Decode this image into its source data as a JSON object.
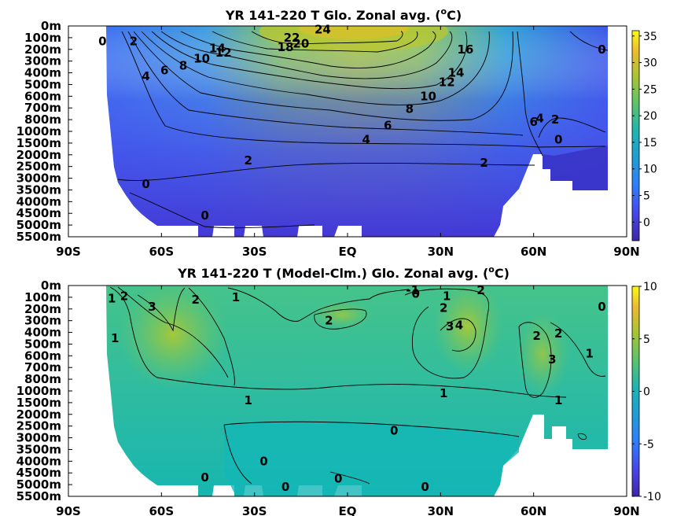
{
  "chart_data": [
    {
      "type": "heatmap",
      "title": "YR 141-220 T Glo. Zonal avg. (",
      "title_sup": "o",
      "title_end": "C)",
      "x_ticks": [
        "90S",
        "60S",
        "30S",
        "EQ",
        "30N",
        "60N",
        "90N"
      ],
      "x_values": [
        -90,
        -60,
        -30,
        0,
        30,
        60,
        90
      ],
      "y_ticks": [
        "0m",
        "100m",
        "200m",
        "300m",
        "400m",
        "500m",
        "600m",
        "700m",
        "800m",
        "1000m",
        "1500m",
        "2000m",
        "2500m",
        "3000m",
        "3500m",
        "4000m",
        "4500m",
        "5000m",
        "5500m"
      ],
      "colorbar": {
        "ticks": [
          "0",
          "5",
          "10",
          "15",
          "20",
          "25",
          "30",
          "35"
        ],
        "values": [
          0,
          5,
          10,
          15,
          20,
          25,
          30,
          35
        ],
        "range": [
          -3.5,
          36
        ]
      },
      "grid": false,
      "contour_labels": [
        {
          "text": "0",
          "lat": -79,
          "depth": 1.5
        },
        {
          "text": "2",
          "lat": -69,
          "depth": 1.5
        },
        {
          "text": "4",
          "lat": -65,
          "depth": 4.5
        },
        {
          "text": "6",
          "lat": -59,
          "depth": 4.0
        },
        {
          "text": "8",
          "lat": -53,
          "depth": 3.6
        },
        {
          "text": "10",
          "lat": -47,
          "depth": 3.0
        },
        {
          "text": "12",
          "lat": -40,
          "depth": 2.5
        },
        {
          "text": "14",
          "lat": -42,
          "depth": 2.1
        },
        {
          "text": "18",
          "lat": -20,
          "depth": 2.0
        },
        {
          "text": "20",
          "lat": -15,
          "depth": 1.7
        },
        {
          "text": "22",
          "lat": -18,
          "depth": 1.2
        },
        {
          "text": "24",
          "lat": -8,
          "depth": 0.5
        },
        {
          "text": "16",
          "lat": 38,
          "depth": 2.2
        },
        {
          "text": "14",
          "lat": 35,
          "depth": 4.2
        },
        {
          "text": "12",
          "lat": 32,
          "depth": 5.0
        },
        {
          "text": "10",
          "lat": 26,
          "depth": 6.2
        },
        {
          "text": "8",
          "lat": 20,
          "depth": 7.3
        },
        {
          "text": "6",
          "lat": 13,
          "depth": 8.7
        },
        {
          "text": "4",
          "lat": 6,
          "depth": 9.9
        },
        {
          "text": "2",
          "lat": -32,
          "depth": 11.7
        },
        {
          "text": "2",
          "lat": 44,
          "depth": 11.9
        },
        {
          "text": "6",
          "lat": 60,
          "depth": 8.4
        },
        {
          "text": "4",
          "lat": 62,
          "depth": 8.1
        },
        {
          "text": "2",
          "lat": 67,
          "depth": 8.2
        },
        {
          "text": "0",
          "lat": 68,
          "depth": 9.9
        },
        {
          "text": "0",
          "lat": 82,
          "depth": 2.2
        },
        {
          "text": "0",
          "lat": -65,
          "depth": 13.7
        },
        {
          "text": "0",
          "lat": -46,
          "depth": 16.4
        }
      ]
    },
    {
      "type": "heatmap",
      "title": "YR 141-220 T (Model-Clm.) Glo. Zonal avg. (",
      "title_sup": "o",
      "title_end": "C)",
      "x_ticks": [
        "90S",
        "60S",
        "30S",
        "EQ",
        "30N",
        "60N",
        "90N"
      ],
      "x_values": [
        -90,
        -60,
        -30,
        0,
        30,
        60,
        90
      ],
      "y_ticks": [
        "0m",
        "100m",
        "200m",
        "300m",
        "400m",
        "500m",
        "600m",
        "700m",
        "800m",
        "1000m",
        "1500m",
        "2000m",
        "2500m",
        "3000m",
        "3500m",
        "4000m",
        "4500m",
        "5000m",
        "5500m"
      ],
      "colorbar": {
        "ticks": [
          "-10",
          "-5",
          "0",
          "5",
          "10"
        ],
        "values": [
          -10,
          -5,
          0,
          5,
          10
        ],
        "range": [
          -10,
          10
        ]
      },
      "grid": false,
      "contour_labels": [
        {
          "text": "1",
          "lat": -76,
          "depth": 1.3
        },
        {
          "text": "2",
          "lat": -72,
          "depth": 1.1
        },
        {
          "text": "3",
          "lat": -63,
          "depth": 2.0
        },
        {
          "text": "2",
          "lat": -49,
          "depth": 1.4
        },
        {
          "text": "1",
          "lat": -36,
          "depth": 1.2
        },
        {
          "text": "1",
          "lat": -75,
          "depth": 4.7
        },
        {
          "text": "2",
          "lat": -6,
          "depth": 3.2
        },
        {
          "text": "-1",
          "lat": 21,
          "depth": 0.6
        },
        {
          "text": "0",
          "lat": 22,
          "depth": 0.9
        },
        {
          "text": "1",
          "lat": 32,
          "depth": 1.1
        },
        {
          "text": "2",
          "lat": 31,
          "depth": 2.1
        },
        {
          "text": "2",
          "lat": 43,
          "depth": 0.6
        },
        {
          "text": "3",
          "lat": 33,
          "depth": 3.7
        },
        {
          "text": "4",
          "lat": 36,
          "depth": 3.6
        },
        {
          "text": "2",
          "lat": 61,
          "depth": 4.5
        },
        {
          "text": "2",
          "lat": 68,
          "depth": 4.3
        },
        {
          "text": "3",
          "lat": 66,
          "depth": 6.5
        },
        {
          "text": "1",
          "lat": 78,
          "depth": 6.0
        },
        {
          "text": "0",
          "lat": 82,
          "depth": 2.0
        },
        {
          "text": "1",
          "lat": 31,
          "depth": 9.4
        },
        {
          "text": "1",
          "lat": -32,
          "depth": 10.0
        },
        {
          "text": "1",
          "lat": 68,
          "depth": 10.0
        },
        {
          "text": "0",
          "lat": 15,
          "depth": 12.6
        },
        {
          "text": "0",
          "lat": -27,
          "depth": 15.2
        },
        {
          "text": "0",
          "lat": -46,
          "depth": 16.6
        },
        {
          "text": "0",
          "lat": -20,
          "depth": 17.4
        },
        {
          "text": "0",
          "lat": -3,
          "depth": 16.7
        },
        {
          "text": "0",
          "lat": 25,
          "depth": 17.4
        }
      ]
    }
  ]
}
